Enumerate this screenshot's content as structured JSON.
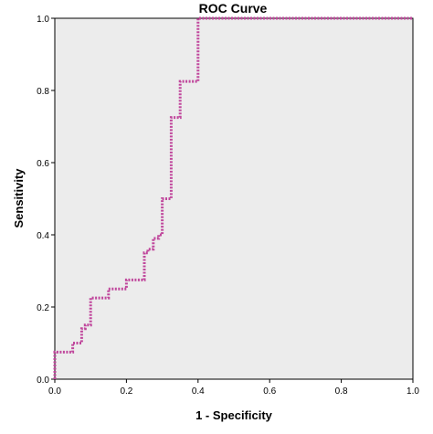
{
  "chart_data": {
    "type": "line",
    "title": "ROC Curve",
    "xlabel": "1 - Specificity",
    "ylabel": "Sensitivity",
    "xlim": [
      0,
      1
    ],
    "ylim": [
      0,
      1
    ],
    "x_ticks": [
      "0.0",
      "0.2",
      "0.4",
      "0.6",
      "0.8",
      "1.0"
    ],
    "y_ticks": [
      "0.0",
      "0.2",
      "0.4",
      "0.6",
      "0.8",
      "1.0"
    ],
    "grid": false,
    "series": [
      {
        "x": [
          0.0,
          0.0,
          0.05,
          0.05,
          0.075,
          0.075,
          0.085,
          0.085,
          0.1,
          0.1,
          0.15,
          0.15,
          0.2,
          0.2,
          0.25,
          0.25,
          0.26,
          0.26,
          0.275,
          0.275,
          0.29,
          0.29,
          0.3,
          0.3,
          0.325,
          0.325,
          0.35,
          0.35,
          0.4,
          0.4,
          1.0
        ],
        "y": [
          0.0,
          0.075,
          0.075,
          0.1,
          0.1,
          0.14,
          0.14,
          0.15,
          0.15,
          0.225,
          0.225,
          0.25,
          0.25,
          0.275,
          0.275,
          0.35,
          0.35,
          0.36,
          0.36,
          0.39,
          0.39,
          0.4,
          0.4,
          0.5,
          0.5,
          0.725,
          0.725,
          0.825,
          0.825,
          1.0,
          1.0
        ]
      }
    ],
    "colors": {
      "curve": "#c0479c",
      "plot_background": "#ececec",
      "frame": "#000000"
    }
  }
}
